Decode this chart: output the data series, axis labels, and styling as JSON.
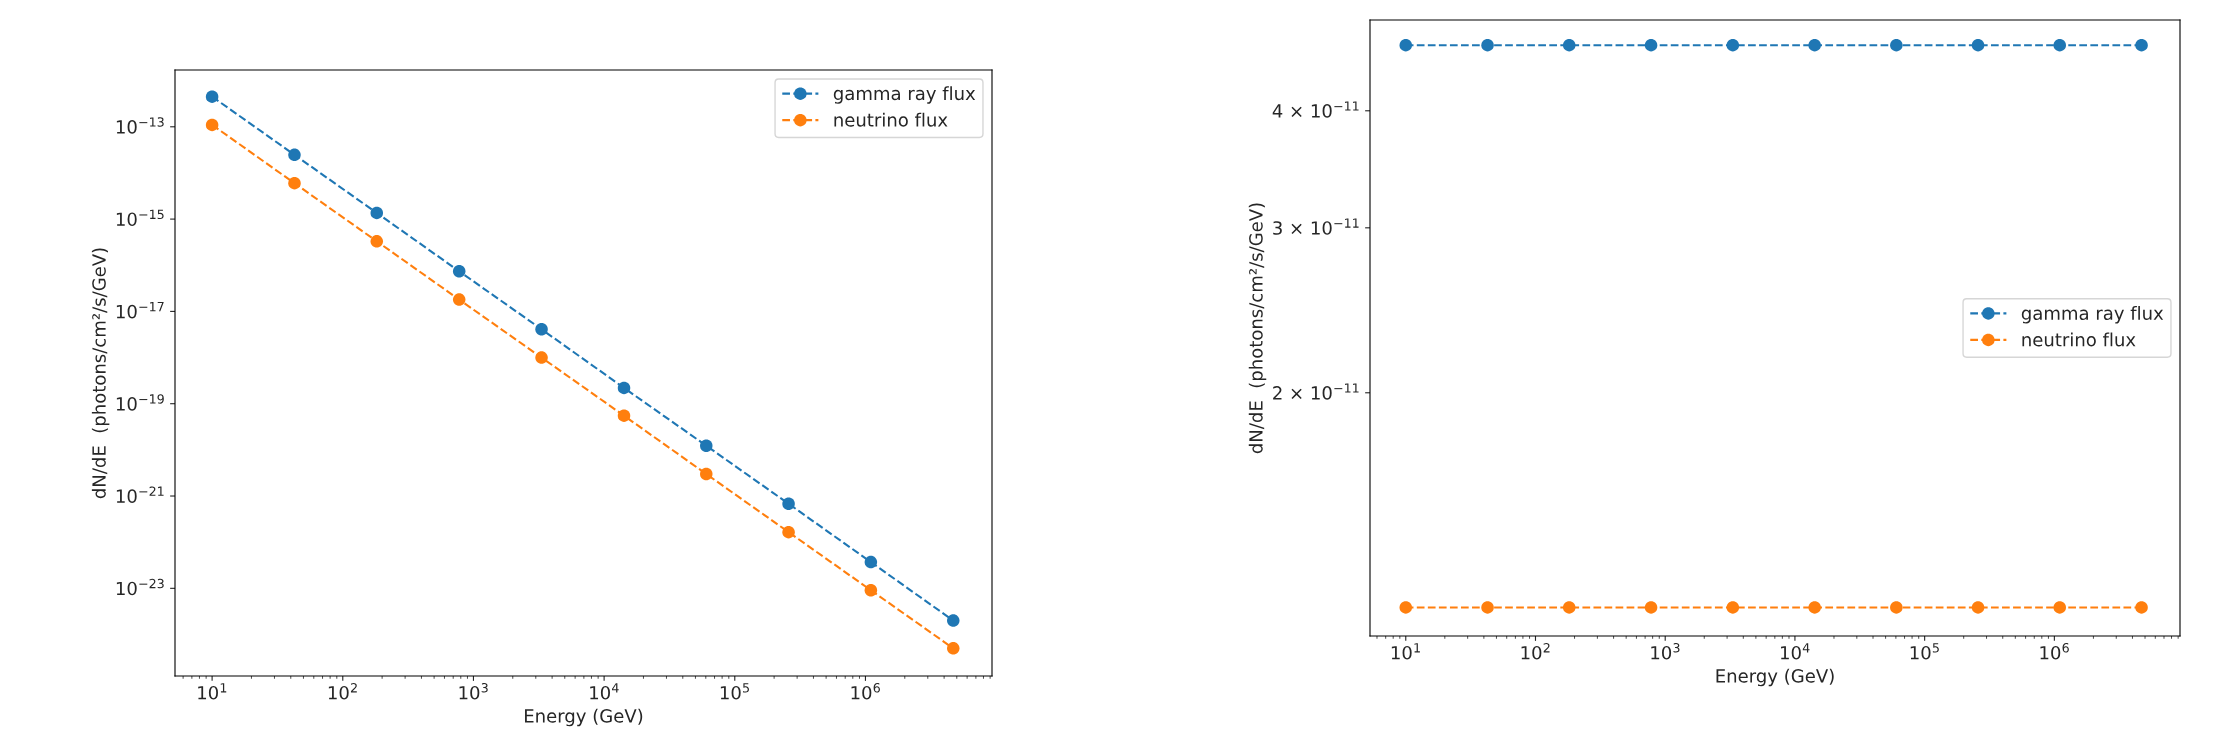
{
  "chart_data": [
    {
      "type": "line",
      "xlabel": "Energy (GeV)",
      "ylabel": "dN/dE  (photons/cm²/s/GeV)",
      "log": "xy",
      "marker": "circle",
      "line_style": "dashed",
      "legend": "top right",
      "grid": false,
      "x": [
        10,
        42.7,
        182,
        778,
        3320,
        14200,
        60500,
        258000,
        1100000,
        4700000
      ],
      "series": [
        {
          "name": "gamma ray flux",
          "color": "#1f77b4",
          "values": [
            4.5e-13,
            2.47e-14,
            1.36e-15,
            7.4e-17,
            4.1e-18,
            2.2e-19,
            1.23e-20,
            6.8e-22,
            3.7e-23,
            2e-24
          ]
        },
        {
          "name": "neutrino flux",
          "color": "#ff7f0e",
          "values": [
            1.1e-13,
            6e-15,
            3.3e-16,
            1.8e-17,
            1e-18,
            5.5e-20,
            3e-21,
            1.65e-22,
            9.1e-24,
            5e-25
          ]
        }
      ],
      "xlim": [
        5.2,
        9300000
      ],
      "ylim": [
        1.26e-25,
        1.7e-12
      ],
      "xticks": [
        {
          "value": 10,
          "label": "10$^{1}$"
        },
        {
          "value": 100,
          "label": "10$^{2}$"
        },
        {
          "value": 1000,
          "label": "10$^{3}$"
        },
        {
          "value": 10000,
          "label": "10$^{4}$"
        },
        {
          "value": 100000,
          "label": "10$^{5}$"
        },
        {
          "value": 1000000,
          "label": "10$^{6}$"
        }
      ],
      "yticks": [
        {
          "value": 1e-13,
          "label": "10$^{−13}$"
        },
        {
          "value": 1e-15,
          "label": "10$^{−15}$"
        },
        {
          "value": 1e-17,
          "label": "10$^{−17}$"
        },
        {
          "value": 1e-19,
          "label": "10$^{−19}$"
        },
        {
          "value": 1e-21,
          "label": "10$^{−21}$"
        },
        {
          "value": 1e-23,
          "label": "10$^{−23}$"
        }
      ]
    },
    {
      "type": "line",
      "xlabel": "Energy (GeV)",
      "ylabel": "dN/dE  (photons/cm²/s/GeV)",
      "log": "xy",
      "marker": "circle",
      "line_style": "dashed",
      "legend": "right",
      "grid": false,
      "x": [
        10,
        42.7,
        182,
        778,
        3320,
        14200,
        60500,
        258000,
        1100000,
        4700000
      ],
      "series": [
        {
          "name": "gamma ray flux",
          "color": "#1f77b4",
          "values": [
            4.7e-11,
            4.7e-11,
            4.7e-11,
            4.7e-11,
            4.7e-11,
            4.7e-11,
            4.7e-11,
            4.7e-11,
            4.7e-11,
            4.7e-11
          ]
        },
        {
          "name": "neutrino flux",
          "color": "#ff7f0e",
          "values": [
            1.18e-11,
            1.18e-11,
            1.18e-11,
            1.18e-11,
            1.18e-11,
            1.18e-11,
            1.18e-11,
            1.18e-11,
            1.18e-11,
            1.18e-11
          ]
        }
      ],
      "xlim": [
        5.3,
        9300000
      ],
      "ylim": [
        1.1e-11,
        5e-11
      ],
      "xticks": [
        {
          "value": 10,
          "label": "10$^{1}$"
        },
        {
          "value": 100,
          "label": "10$^{2}$"
        },
        {
          "value": 1000,
          "label": "10$^{3}$"
        },
        {
          "value": 10000,
          "label": "10$^{4}$"
        },
        {
          "value": 100000,
          "label": "10$^{5}$"
        },
        {
          "value": 1000000,
          "label": "10$^{6}$"
        }
      ],
      "yticks": [
        {
          "value": 2e-11,
          "label": "2 × 10$^{−11}$"
        },
        {
          "value": 3e-11,
          "label": "3 × 10$^{−11}$"
        },
        {
          "value": 4e-11,
          "label": "4 × 10$^{−11}$"
        }
      ]
    }
  ]
}
